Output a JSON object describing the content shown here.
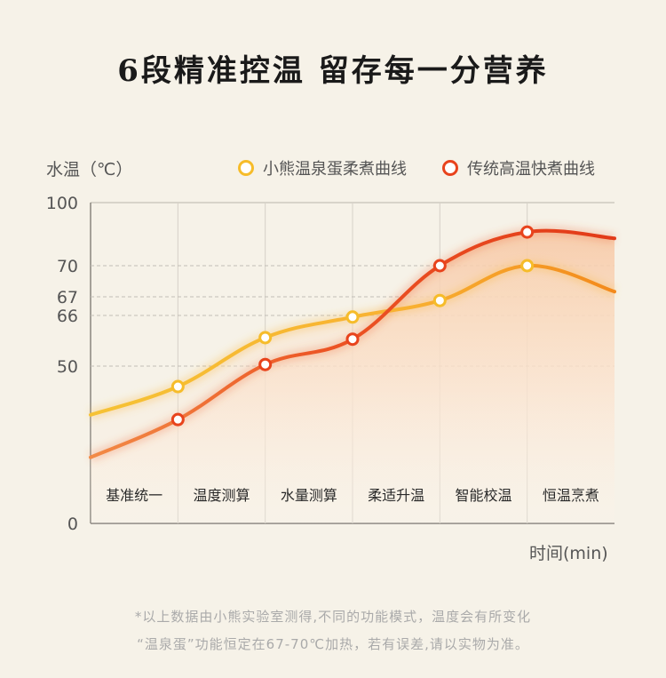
{
  "title": "6段精准控温 留存每一分营养",
  "footnote": [
    "*以上数据由小熊实验室测得,不同的功能模式，温度会有所变化",
    "“温泉蛋”功能恒定在67-70℃加热，若有误差,请以实物为准。"
  ],
  "chart_data": {
    "type": "line",
    "ylabel": "水温（℃）",
    "xlabel": "时间(min)",
    "y_ticks": [
      0,
      50,
      66,
      67,
      70,
      100
    ],
    "categories": [
      "基准统一",
      "温度测算",
      "水量测算",
      "柔适升温",
      "智能校温",
      "恒温烹煮"
    ],
    "series": [
      {
        "name": "小熊温泉蛋柔煮曲线",
        "color": "#f6bc2a",
        "points": [
          [
            0.0,
            34.5
          ],
          [
            1.0,
            43.5
          ],
          [
            2.0,
            59.0
          ],
          [
            3.0,
            65.5
          ],
          [
            4.0,
            66.8
          ],
          [
            5.0,
            70.0
          ],
          [
            6.0,
            67.5
          ]
        ]
      },
      {
        "name": "传统高温快煮曲线",
        "color": "#e8431c",
        "points": [
          [
            0.0,
            21.0
          ],
          [
            1.0,
            33.0
          ],
          [
            2.0,
            50.5
          ],
          [
            3.0,
            58.5
          ],
          [
            4.0,
            70.0
          ],
          [
            5.0,
            86.0
          ],
          [
            6.0,
            83.0
          ]
        ]
      }
    ],
    "markers": {
      "小熊温泉蛋柔煮曲线": [
        [
          1,
          43.5
        ],
        [
          2,
          59.0
        ],
        [
          3,
          65.5
        ],
        [
          4,
          66.8
        ],
        [
          5,
          70.0
        ]
      ],
      "传统高温快煮曲线": [
        [
          1,
          33.0
        ],
        [
          2,
          50.5
        ],
        [
          3,
          58.5
        ],
        [
          4,
          70.0
        ],
        [
          5,
          86.0
        ]
      ]
    }
  }
}
